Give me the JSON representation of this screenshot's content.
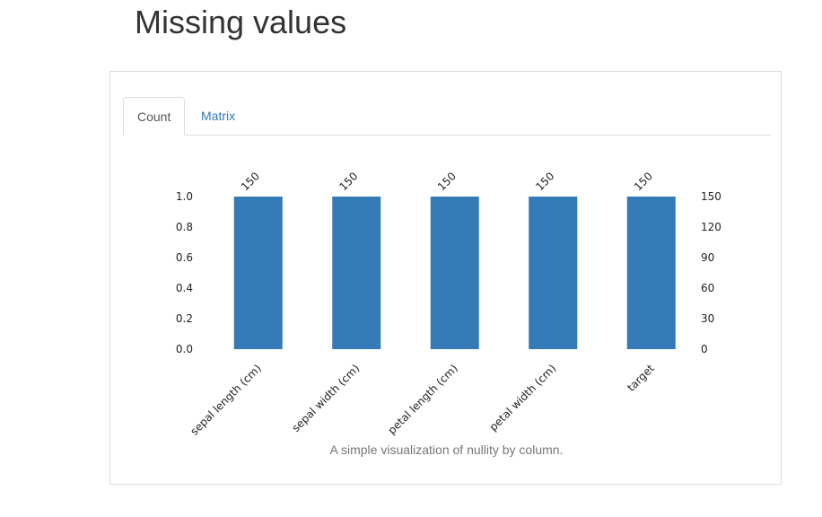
{
  "page": {
    "title": "Missing values"
  },
  "tabs": [
    {
      "label": "Count",
      "active": true
    },
    {
      "label": "Matrix",
      "active": false
    }
  ],
  "caption": "A simple visualization of nullity by column.",
  "colors": {
    "bar": "#337ab7",
    "link": "#337ab7"
  },
  "chart_data": {
    "type": "bar",
    "categories": [
      "sepal length (cm)",
      "sepal width (cm)",
      "petal length (cm)",
      "petal width (cm)",
      "target"
    ],
    "values": [
      1.0,
      1.0,
      1.0,
      1.0,
      1.0
    ],
    "counts": [
      150,
      150,
      150,
      150,
      150
    ],
    "data_labels": [
      "150",
      "150",
      "150",
      "150",
      "150"
    ],
    "ylim": [
      0,
      1.0
    ],
    "yticks": [
      "0.0",
      "0.2",
      "0.4",
      "0.6",
      "0.8",
      "1.0"
    ],
    "y2lim": [
      0,
      150
    ],
    "y2ticks": [
      "0",
      "30",
      "60",
      "90",
      "120",
      "150"
    ],
    "grid": false
  }
}
